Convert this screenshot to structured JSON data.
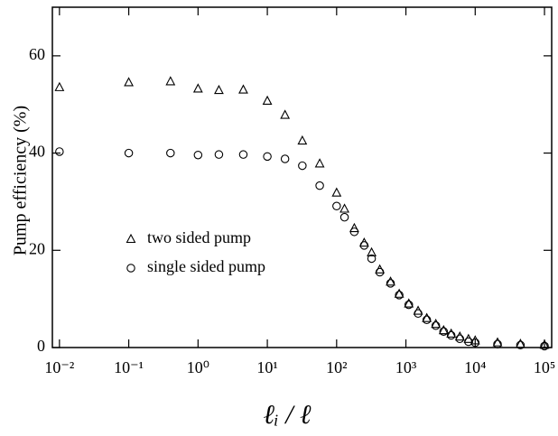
{
  "chart_data": {
    "type": "scatter",
    "x_label": "ℓᵢ / ℓ",
    "y_label": "Pump efficiency (%)",
    "x": [
      0.01,
      0.1,
      0.4,
      1,
      2,
      4.5,
      10,
      18,
      32,
      57,
      100,
      130,
      180,
      250,
      320,
      420,
      600,
      800,
      1100,
      1500,
      2000,
      2700,
      3500,
      4500,
      6000,
      8000,
      10000,
      21000,
      45000,
      100000
    ],
    "series": [
      {
        "name": "two sided pump",
        "color": "#000000",
        "marker": "triangle",
        "values": [
          53.5,
          54.5,
          54.7,
          53.2,
          52.9,
          53,
          50.7,
          47.8,
          42.5,
          37.8,
          31.8,
          28.5,
          24.5,
          21.5,
          19.5,
          16,
          13.5,
          11,
          9,
          7.5,
          6,
          4.8,
          3.5,
          2.8,
          2.2,
          1.7,
          1.4,
          1,
          0.7,
          0.5
        ]
      },
      {
        "name": "single sided pump",
        "color": "#000000",
        "marker": "circle",
        "values": [
          40.3,
          40,
          40,
          39.6,
          39.7,
          39.7,
          39.3,
          38.8,
          37.4,
          33.3,
          29.1,
          26.8,
          23.8,
          21,
          18.3,
          15.5,
          13.2,
          10.8,
          8.8,
          7,
          5.7,
          4.5,
          3.3,
          2.5,
          1.8,
          1.2,
          1,
          0.7,
          0.5,
          0.3
        ]
      }
    ],
    "x_log": true,
    "xlim": [
      0.0079,
      127000
    ],
    "xticks": [
      {
        "value": 0.01,
        "label": "10⁻²"
      },
      {
        "value": 0.1,
        "label": "10⁻¹"
      },
      {
        "value": 1,
        "label": "10⁰"
      },
      {
        "value": 10,
        "label": "10¹"
      },
      {
        "value": 100,
        "label": "10²"
      },
      {
        "value": 1000,
        "label": "10³"
      },
      {
        "value": 10000,
        "label": "10⁴"
      },
      {
        "value": 100000,
        "label": "10⁵"
      }
    ],
    "ylim": [
      0,
      70
    ],
    "yticks": [
      0,
      20,
      40,
      60
    ],
    "grid": false,
    "legend": "left"
  }
}
